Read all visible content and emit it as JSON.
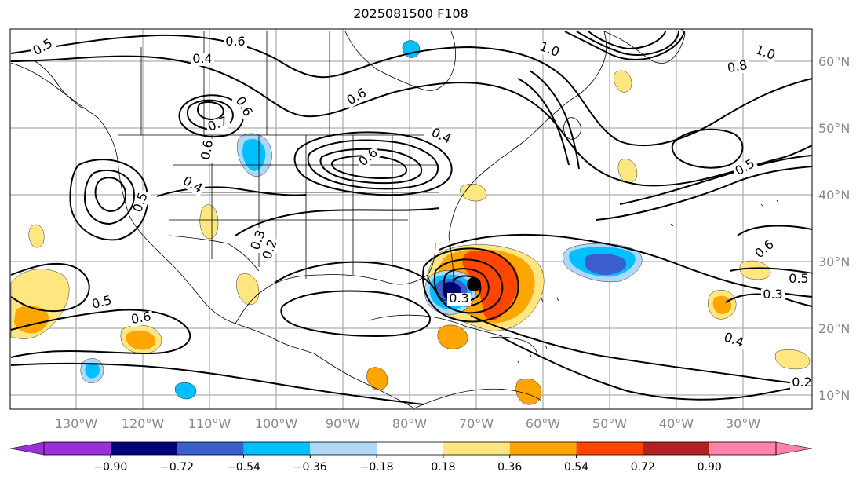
{
  "title": "2025081500 F108",
  "lat_labels": [
    "60°N",
    "50°N",
    "40°N",
    "30°N",
    "20°N",
    "10°N"
  ],
  "lon_labels": [
    "130°W",
    "120°W",
    "110°W",
    "100°W",
    "90°W",
    "80°W",
    "70°W",
    "60°W",
    "50°W",
    "40°W",
    "30°W"
  ],
  "contour_labels": [
    "0.5",
    "0.6",
    "0.4",
    "0.6",
    "0.7",
    "0.6",
    "0.4",
    "0.5",
    "0.3",
    "0.4",
    "0.6",
    "0.2",
    "0.5",
    "0.6",
    "1.0",
    "0.8",
    "1.0",
    "0.5",
    "0.6",
    "0.5",
    "0.3",
    "0.4",
    "0.2",
    "0.3",
    "0.6"
  ],
  "colorbar": {
    "ticks": [
      "−0.90",
      "−0.72",
      "−0.54",
      "−0.36",
      "−0.18",
      "0.18",
      "0.36",
      "0.54",
      "0.72",
      "0.90"
    ],
    "colors": [
      "#9b30d9",
      "#00007f",
      "#3a5fcd",
      "#00bfff",
      "#add8f7",
      "#ffffff",
      "#ffe680",
      "#ffa500",
      "#ff4500",
      "#b22222",
      "#ff82ab"
    ]
  },
  "storm_marker": "black-dot"
}
